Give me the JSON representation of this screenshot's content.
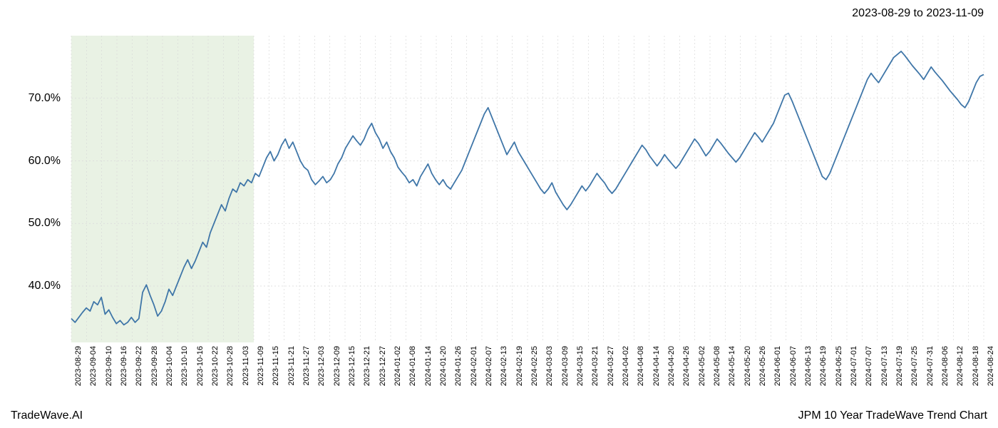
{
  "header": {
    "date_range": "2023-08-29 to 2023-11-09"
  },
  "footer": {
    "left": "TradeWave.AI",
    "right": "JPM 10 Year TradeWave Trend Chart"
  },
  "chart": {
    "type": "line",
    "line_color": "#3f76a8",
    "line_width": 1.8,
    "background_color": "#ffffff",
    "grid_color": "#d9d9d9",
    "grid_dash": "2,3",
    "highlight_region": {
      "fill": "#d7e8cd",
      "opacity": 0.55,
      "x_start_index": 0,
      "x_end_index": 12
    },
    "y_axis": {
      "min": 31,
      "max": 80,
      "ticks": [
        40,
        50,
        60,
        70
      ],
      "tick_labels": [
        "40.0%",
        "50.0%",
        "60.0%",
        "70.0%"
      ],
      "label_fontsize": 16
    },
    "x_axis": {
      "labels": [
        "2023-08-29",
        "2023-09-04",
        "2023-09-10",
        "2023-09-16",
        "2023-09-22",
        "2023-09-28",
        "2023-10-04",
        "2023-10-10",
        "2023-10-16",
        "2023-10-22",
        "2023-10-28",
        "2023-11-03",
        "2023-11-09",
        "2023-11-15",
        "2023-11-21",
        "2023-11-27",
        "2023-12-03",
        "2023-12-09",
        "2023-12-15",
        "2023-12-21",
        "2023-12-27",
        "2024-01-02",
        "2024-01-08",
        "2024-01-14",
        "2024-01-20",
        "2024-01-26",
        "2024-02-01",
        "2024-02-07",
        "2024-02-13",
        "2024-02-19",
        "2024-02-25",
        "2024-03-03",
        "2024-03-09",
        "2024-03-15",
        "2024-03-21",
        "2024-03-27",
        "2024-04-02",
        "2024-04-08",
        "2024-04-14",
        "2024-04-20",
        "2024-04-26",
        "2024-05-02",
        "2024-05-08",
        "2024-05-14",
        "2024-05-20",
        "2024-05-26",
        "2024-06-01",
        "2024-06-07",
        "2024-06-13",
        "2024-06-19",
        "2024-06-25",
        "2024-07-01",
        "2024-07-07",
        "2024-07-13",
        "2024-07-19",
        "2024-07-25",
        "2024-07-31",
        "2024-08-06",
        "2024-08-12",
        "2024-08-18",
        "2024-08-24"
      ],
      "label_fontsize": 11,
      "rotation": -90
    },
    "series": [
      34.8,
      34.2,
      35.0,
      35.8,
      36.5,
      36.0,
      37.5,
      37.0,
      38.2,
      35.5,
      36.2,
      35.0,
      34.0,
      34.5,
      33.8,
      34.2,
      35.0,
      34.2,
      34.8,
      39.0,
      40.2,
      38.5,
      37.0,
      35.2,
      36.0,
      37.5,
      39.5,
      38.5,
      40.0,
      41.5,
      43.0,
      44.2,
      42.8,
      44.0,
      45.5,
      47.0,
      46.2,
      48.5,
      50.0,
      51.5,
      53.0,
      52.0,
      54.0,
      55.5,
      55.0,
      56.5,
      56.0,
      57.0,
      56.5,
      58.0,
      57.5,
      59.0,
      60.5,
      61.5,
      60.0,
      61.0,
      62.5,
      63.5,
      62.0,
      63.0,
      61.5,
      60.0,
      59.0,
      58.5,
      57.0,
      56.2,
      56.8,
      57.5,
      56.5,
      57.0,
      58.0,
      59.5,
      60.5,
      62.0,
      63.0,
      64.0,
      63.2,
      62.5,
      63.5,
      65.0,
      66.0,
      64.5,
      63.5,
      62.0,
      63.0,
      61.5,
      60.5,
      59.0,
      58.2,
      57.5,
      56.5,
      57.0,
      56.0,
      57.5,
      58.5,
      59.5,
      58.0,
      57.0,
      56.2,
      57.0,
      56.0,
      55.5,
      56.5,
      57.5,
      58.5,
      60.0,
      61.5,
      63.0,
      64.5,
      66.0,
      67.5,
      68.5,
      67.0,
      65.5,
      64.0,
      62.5,
      61.0,
      62.0,
      63.0,
      61.5,
      60.5,
      59.5,
      58.5,
      57.5,
      56.5,
      55.5,
      54.8,
      55.5,
      56.5,
      55.0,
      54.0,
      53.0,
      52.2,
      53.0,
      54.0,
      55.0,
      56.0,
      55.2,
      56.0,
      57.0,
      58.0,
      57.2,
      56.5,
      55.5,
      54.8,
      55.5,
      56.5,
      57.5,
      58.5,
      59.5,
      60.5,
      61.5,
      62.5,
      61.8,
      60.8,
      60.0,
      59.2,
      60.0,
      61.0,
      60.2,
      59.5,
      58.8,
      59.5,
      60.5,
      61.5,
      62.5,
      63.5,
      62.8,
      61.8,
      60.8,
      61.5,
      62.5,
      63.5,
      62.8,
      62.0,
      61.2,
      60.5,
      59.8,
      60.5,
      61.5,
      62.5,
      63.5,
      64.5,
      63.8,
      63.0,
      64.0,
      65.0,
      66.0,
      67.5,
      69.0,
      70.5,
      70.8,
      69.5,
      68.0,
      66.5,
      65.0,
      63.5,
      62.0,
      60.5,
      59.0,
      57.5,
      57.0,
      58.0,
      59.5,
      61.0,
      62.5,
      64.0,
      65.5,
      67.0,
      68.5,
      70.0,
      71.5,
      73.0,
      74.0,
      73.2,
      72.5,
      73.5,
      74.5,
      75.5,
      76.5,
      77.0,
      77.5,
      76.8,
      76.0,
      75.2,
      74.5,
      73.8,
      73.0,
      74.0,
      75.0,
      74.2,
      73.5,
      72.8,
      72.0,
      71.2,
      70.5,
      69.8,
      69.0,
      68.5,
      69.5,
      71.0,
      72.5,
      73.5,
      73.8
    ]
  }
}
